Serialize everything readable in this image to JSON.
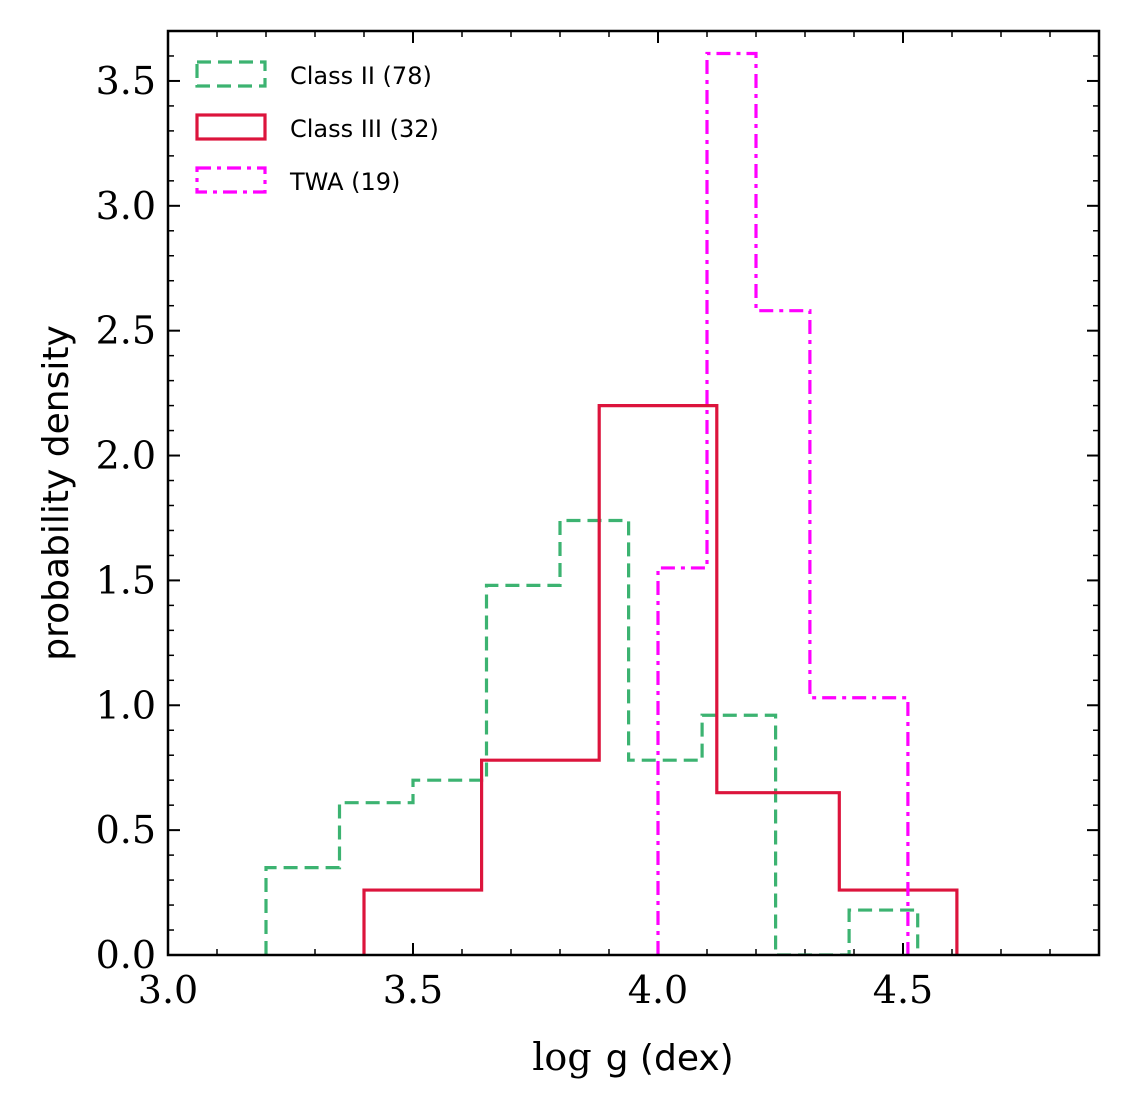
{
  "chart_data": {
    "type": "histogram",
    "title": "",
    "xlabel_math": "log",
    "xlabel_text": "g (dex)",
    "ylabel": "probability density",
    "xlim": [
      3.0,
      4.9
    ],
    "ylim": [
      0.0,
      3.7
    ],
    "xticks": [
      3.0,
      3.5,
      4.0,
      4.5
    ],
    "xtick_labels": [
      "3.0",
      "3.5",
      "4.0",
      "4.5"
    ],
    "yticks": [
      0.0,
      0.5,
      1.0,
      1.5,
      2.0,
      2.5,
      3.0,
      3.5
    ],
    "ytick_labels": [
      "0.0",
      "0.5",
      "1.0",
      "1.5",
      "2.0",
      "2.5",
      "3.0",
      "3.5"
    ],
    "legend_position": "top-left",
    "series": [
      {
        "name": "Class II (78)",
        "style": "dashed",
        "color": "#3cb371",
        "bin_edges": [
          3.2,
          3.35,
          3.5,
          3.65,
          3.8,
          3.94,
          4.09,
          4.24,
          4.39,
          4.53
        ],
        "values": [
          0.35,
          0.61,
          0.7,
          1.48,
          1.74,
          0.78,
          0.96,
          0.0,
          0.18
        ]
      },
      {
        "name": "Class III (32)",
        "style": "solid",
        "color": "#dc143c",
        "bin_edges": [
          3.4,
          3.64,
          3.88,
          4.12,
          4.37,
          4.61
        ],
        "values": [
          0.26,
          0.78,
          2.2,
          0.65,
          0.26
        ]
      },
      {
        "name": "TWA (19)",
        "style": "dashdot",
        "color": "#ff00ff",
        "bin_edges": [
          4.0,
          4.1,
          4.2,
          4.31,
          4.51
        ],
        "values": [
          1.55,
          3.61,
          2.58,
          1.03
        ]
      }
    ]
  }
}
